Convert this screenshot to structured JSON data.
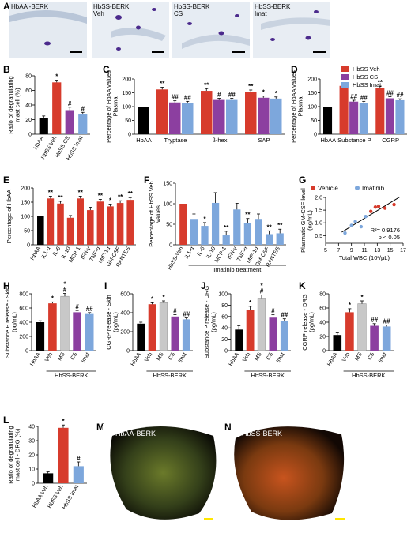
{
  "colors": {
    "veh": "#d73b2c",
    "cs": "#8c3fa0",
    "imat": "#7da7dc",
    "haa": "#000000",
    "ms": "#c8c8c8"
  },
  "panels": {
    "A": {
      "letter": "A",
      "labels": [
        "HbAA -BERK",
        "HbSS-BERK\nVeh",
        "HbSS-BERK\nCS",
        "HbSS-BERK\nImat"
      ]
    },
    "M": {
      "letter": "M",
      "label": "HbAA-BERK"
    },
    "N": {
      "letter": "N",
      "label": "HbSS-BERK"
    }
  },
  "legend_D": [
    "HbSS Veh",
    "HbSS CS",
    "HbSS Imat"
  ],
  "legend_G": [
    "Vehicle",
    "Imatinib"
  ],
  "chart_data": [
    {
      "id": "B",
      "type": "bar",
      "ylabel": "Ratio of degranulating\nmast cell (%)",
      "ylim": [
        0,
        80
      ],
      "yticks": [
        0,
        20,
        40,
        60,
        80
      ],
      "categories": [
        "HbAA",
        "HbSS Veh",
        "HbSS CS",
        "HbSS Imat"
      ],
      "colors": [
        "haa",
        "veh",
        "cs",
        "imat"
      ],
      "values": [
        22,
        71,
        33,
        27
      ],
      "errors": [
        3,
        3,
        4,
        3
      ],
      "marks": [
        "",
        "*",
        "#",
        "#"
      ]
    },
    {
      "id": "C",
      "type": "bar",
      "ylabel": "Percentage of HbAA values\nPlasma",
      "ylim": [
        0,
        200
      ],
      "yticks": [
        0,
        50,
        100,
        150,
        200
      ],
      "groups": [
        {
          "label": "HbAA",
          "values": [
            100
          ],
          "colors": [
            "haa"
          ],
          "errors": [
            0
          ],
          "marks": [
            ""
          ]
        },
        {
          "label": "Tryptase",
          "values": [
            162,
            115,
            113
          ],
          "colors": [
            "veh",
            "cs",
            "imat"
          ],
          "errors": [
            8,
            6,
            6
          ],
          "marks": [
            "**",
            "##",
            "##"
          ]
        },
        {
          "label": "β-hex",
          "values": [
            157,
            124,
            124
          ],
          "colors": [
            "veh",
            "cs",
            "imat"
          ],
          "errors": [
            8,
            6,
            6
          ],
          "marks": [
            "**",
            "#",
            "##"
          ]
        },
        {
          "label": "SAP",
          "values": [
            152,
            132,
            129
          ],
          "colors": [
            "veh",
            "cs",
            "imat"
          ],
          "errors": [
            8,
            6,
            6
          ],
          "marks": [
            "**",
            "*",
            "*"
          ]
        }
      ]
    },
    {
      "id": "D",
      "type": "bar",
      "ylabel": "Percentage of HbAA values\nPlasma",
      "ylim": [
        0,
        200
      ],
      "yticks": [
        0,
        50,
        100,
        150,
        200
      ],
      "groups": [
        {
          "label": "HbAA",
          "values": [
            100
          ],
          "colors": [
            "haa"
          ],
          "errors": [
            0
          ],
          "marks": [
            ""
          ]
        },
        {
          "label": "Substance P",
          "values": [
            175,
            118,
            114
          ],
          "colors": [
            "veh",
            "cs",
            "imat"
          ],
          "errors": [
            8,
            5,
            5
          ],
          "marks": [
            "**",
            "##",
            "##"
          ]
        },
        {
          "label": "CGRP",
          "values": [
            166,
            130,
            123
          ],
          "colors": [
            "veh",
            "cs",
            "imat"
          ],
          "errors": [
            8,
            6,
            5
          ],
          "marks": [
            "**",
            "##",
            "##"
          ]
        }
      ]
    },
    {
      "id": "E",
      "type": "bar",
      "ylabel": "Percentage of HbAA",
      "ylim": [
        0,
        200
      ],
      "yticks": [
        0,
        50,
        100,
        150,
        200
      ],
      "categories": [
        "HbAA",
        "IL1-α",
        "IL-6",
        "IL-10",
        "MCP-1",
        "IFN-γ",
        "TNF-α",
        "MIP-1α",
        "GM-CSF",
        "RANTES"
      ],
      "colors": [
        "haa",
        "veh",
        "veh",
        "veh",
        "veh",
        "veh",
        "veh",
        "veh",
        "veh",
        "veh"
      ],
      "values": [
        100,
        163,
        145,
        95,
        163,
        122,
        152,
        135,
        147,
        158
      ],
      "errors": [
        0,
        8,
        8,
        8,
        8,
        10,
        8,
        8,
        8,
        8
      ],
      "marks": [
        "",
        "**",
        "**",
        "",
        "**",
        "",
        "**",
        "*",
        "**",
        "**"
      ]
    },
    {
      "id": "F",
      "type": "bar",
      "ylabel": "Percentage of HbSS Veh\nvalues",
      "ylim": [
        0,
        150
      ],
      "yticks": [
        0,
        50,
        100,
        150
      ],
      "xgroup": "Imatinib treatment",
      "categories": [
        "HbSS-Veh",
        "IL1-α",
        "IL-6",
        "IL-10",
        "MCP-1",
        "IFN-γ",
        "TNF-α",
        "MIP-1α",
        "GM-CSF",
        "RANTES"
      ],
      "colors": [
        "veh",
        "imat",
        "imat",
        "imat",
        "imat",
        "imat",
        "imat",
        "imat",
        "imat",
        "imat"
      ],
      "values": [
        100,
        63,
        46,
        102,
        23,
        86,
        52,
        63,
        26,
        28
      ],
      "errors": [
        0,
        12,
        8,
        25,
        10,
        15,
        12,
        12,
        8,
        10
      ],
      "marks": [
        "",
        "",
        "*",
        "",
        "**",
        "",
        "**",
        "",
        "**",
        "**"
      ]
    },
    {
      "id": "G",
      "type": "scatter",
      "xlabel": "Total WBC (10³/μL)",
      "ylabel": "Plasmatic GM-CSF level\n(ng/mL)",
      "xlim": [
        5,
        17
      ],
      "xticks": [
        5,
        7,
        9,
        11,
        13,
        15,
        17
      ],
      "ylim": [
        0.2,
        2.0
      ],
      "yticks": [
        0.5,
        1.0,
        1.5,
        2.0
      ],
      "series": [
        {
          "name": "Vehicle",
          "color": "veh",
          "x": [
            12.0,
            12.7,
            13.2,
            14.2,
            15.6
          ],
          "y": [
            1.45,
            1.62,
            1.65,
            1.58,
            1.72
          ]
        },
        {
          "name": "Imatinib",
          "color": "imat",
          "x": [
            8.0,
            9.0,
            9.6,
            10.5,
            11.2
          ],
          "y": [
            0.6,
            0.9,
            1.05,
            0.85,
            1.25
          ]
        }
      ],
      "annotation": [
        "R²= 0.9176",
        "p < 0.05"
      ]
    },
    {
      "id": "H",
      "type": "bar",
      "ylabel": "Substance P release - Skin\n(pg/mL)",
      "ylim": [
        0,
        800
      ],
      "yticks": [
        0,
        200,
        400,
        600,
        800
      ],
      "xgroup": "HbSS-BERK",
      "categories": [
        "HbAA",
        "Veh",
        "MS",
        "CS",
        "Imat"
      ],
      "colors": [
        "haa",
        "veh",
        "ms",
        "cs",
        "imat"
      ],
      "values": [
        400,
        665,
        765,
        540,
        515
      ],
      "errors": [
        20,
        20,
        40,
        25,
        20
      ],
      "marks": [
        "",
        "*",
        "*\n#",
        "#",
        "##"
      ]
    },
    {
      "id": "I",
      "type": "bar",
      "ylabel": "CGRP release - Skin\n(pg/mL)",
      "ylim": [
        0,
        600
      ],
      "yticks": [
        0,
        200,
        400,
        600
      ],
      "xgroup": "HbSS-BERK",
      "categories": [
        "HbAA",
        "Veh",
        "MS",
        "CS",
        "Imat"
      ],
      "colors": [
        "haa",
        "veh",
        "ms",
        "cs",
        "imat"
      ],
      "values": [
        285,
        490,
        505,
        360,
        330
      ],
      "errors": [
        15,
        15,
        20,
        20,
        15
      ],
      "marks": [
        "",
        "*",
        "*",
        "#",
        "##"
      ]
    },
    {
      "id": "J",
      "type": "bar",
      "ylabel": "Substance P release - DRG\n(pg/mL)",
      "ylim": [
        0,
        100
      ],
      "yticks": [
        0,
        20,
        40,
        60,
        80,
        100
      ],
      "xgroup": "HbSS-BERK",
      "categories": [
        "HbAA",
        "Veh",
        "MS",
        "CS",
        "Imat"
      ],
      "colors": [
        "haa",
        "veh",
        "ms",
        "cs",
        "imat"
      ],
      "values": [
        37,
        72,
        91,
        58,
        52
      ],
      "errors": [
        7,
        6,
        7,
        5,
        4
      ],
      "marks": [
        "",
        "*",
        "*\n#",
        "#",
        "##"
      ]
    },
    {
      "id": "K",
      "type": "bar",
      "ylabel": "CGRP release - DRG\n(pg/mL)",
      "ylim": [
        0,
        80
      ],
      "yticks": [
        0,
        20,
        40,
        60,
        80
      ],
      "xgroup": "HbSS-BERK",
      "categories": [
        "HbAA",
        "Veh",
        "MS",
        "CS",
        "Imat"
      ],
      "colors": [
        "haa",
        "veh",
        "ms",
        "cs",
        "imat"
      ],
      "values": [
        22,
        54,
        66,
        35,
        34
      ],
      "errors": [
        3,
        5,
        4,
        3,
        2
      ],
      "marks": [
        "",
        "*",
        "*",
        "##",
        "##"
      ]
    },
    {
      "id": "L",
      "type": "bar",
      "ylabel": "Ratio of degranulating\nmast cell - DRG (%)",
      "ylim": [
        0,
        40
      ],
      "yticks": [
        0,
        10,
        20,
        30,
        40
      ],
      "categories": [
        "HbAA Veh",
        "HbSS Veh",
        "HbSS Imat"
      ],
      "colors": [
        "haa",
        "veh",
        "imat"
      ],
      "values": [
        7,
        39,
        12
      ],
      "errors": [
        1,
        2,
        3
      ],
      "marks": [
        "",
        "*",
        "#"
      ]
    }
  ]
}
